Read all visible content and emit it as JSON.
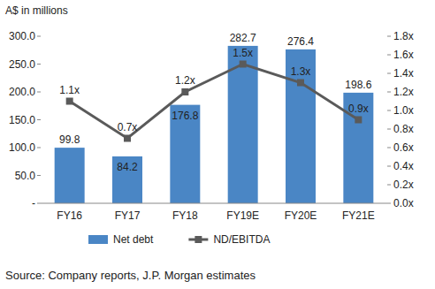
{
  "chart_data": {
    "type": "bar",
    "ylabel": "A$ in millions",
    "source": "Source: Company reports, J.P. Morgan estimates",
    "categories": [
      "FY16",
      "FY17",
      "FY18",
      "FY19E",
      "FY20E",
      "FY21E"
    ],
    "ylim": [
      0,
      300
    ],
    "yticks": [
      {
        "value": 0,
        "label": "-"
      },
      {
        "value": 50,
        "label": "50.0"
      },
      {
        "value": 100,
        "label": "100.0"
      },
      {
        "value": 150,
        "label": "150.0"
      },
      {
        "value": 200,
        "label": "200.0"
      },
      {
        "value": 250,
        "label": "250.0"
      },
      {
        "value": 300,
        "label": "300.0"
      }
    ],
    "y2lim": [
      0,
      1.8
    ],
    "y2ticks": [
      {
        "value": 0,
        "label": "0.0x"
      },
      {
        "value": 0.2,
        "label": "0.2x"
      },
      {
        "value": 0.4,
        "label": "0.4x"
      },
      {
        "value": 0.6,
        "label": "0.6x"
      },
      {
        "value": 0.8,
        "label": "0.8x"
      },
      {
        "value": 1.0,
        "label": "1.0x"
      },
      {
        "value": 1.2,
        "label": "1.2x"
      },
      {
        "value": 1.4,
        "label": "1.4x"
      },
      {
        "value": 1.6,
        "label": "1.6x"
      },
      {
        "value": 1.8,
        "label": "1.8x"
      }
    ],
    "grid": false,
    "legend": "bottom",
    "data_labels": true,
    "series": [
      {
        "name": "Net debt",
        "type": "bar",
        "color": "#4a86c5",
        "values": [
          99.8,
          84.2,
          176.8,
          282.7,
          276.4,
          198.6
        ]
      },
      {
        "name": "ND/EBITDA",
        "type": "line",
        "axis": "y2",
        "color": "#5a5a5a",
        "marker": "square",
        "line_style": "solid",
        "values": [
          1.1,
          0.7,
          1.2,
          1.5,
          1.3,
          0.9
        ],
        "value_labels": [
          "1.1x",
          "0.7x",
          "1.2x",
          "1.5x",
          "1.3x",
          "0.9x"
        ]
      }
    ]
  }
}
